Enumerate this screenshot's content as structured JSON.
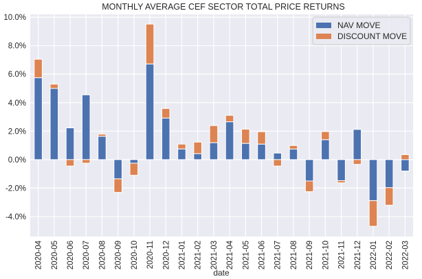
{
  "chart_data": {
    "type": "bar",
    "stacked": true,
    "title": "MONTHLY AVERAGE CEF SECTOR TOTAL PRICE RETURNS",
    "xlabel": "date",
    "ylabel": "",
    "ylim": [
      -5.4,
      10.2
    ],
    "yticks": [
      -4.0,
      -2.0,
      0.0,
      2.0,
      4.0,
      6.0,
      8.0,
      10.0
    ],
    "ytick_format": "percent_1dp",
    "grid": true,
    "legend_position": "top-right",
    "categories": [
      "2020-04",
      "2020-05",
      "2020-06",
      "2020-07",
      "2020-08",
      "2020-09",
      "2020-10",
      "2020-11",
      "2020-12",
      "2021-01",
      "2021-02",
      "2021-03",
      "2021-04",
      "2021-05",
      "2021-06",
      "2021-07",
      "2021-08",
      "2021-09",
      "2021-10",
      "2021-11",
      "2021-12",
      "2022-01",
      "2022-02",
      "2022-03"
    ],
    "series": [
      {
        "name": "NAV MOVE",
        "color": "#4c72b0",
        "values": [
          5.75,
          5.0,
          2.23,
          4.55,
          1.64,
          -1.35,
          -0.25,
          6.72,
          2.92,
          0.75,
          0.42,
          1.19,
          2.66,
          1.14,
          1.09,
          0.46,
          0.74,
          -1.5,
          1.4,
          -1.48,
          2.12,
          -2.88,
          -1.97,
          -0.8
        ]
      },
      {
        "name": "DISCOUNT MOVE",
        "color": "#dd8452",
        "values": [
          1.3,
          0.3,
          -0.45,
          -0.25,
          0.15,
          -0.95,
          -0.85,
          2.8,
          0.67,
          0.34,
          0.81,
          1.2,
          0.45,
          1.0,
          0.87,
          -0.45,
          0.25,
          -0.75,
          0.57,
          -0.15,
          -0.33,
          -1.8,
          -1.23,
          0.35
        ]
      }
    ]
  },
  "colors": {
    "plot_background": "#eaeaf2",
    "grid": "#ffffff",
    "text": "#262626"
  }
}
